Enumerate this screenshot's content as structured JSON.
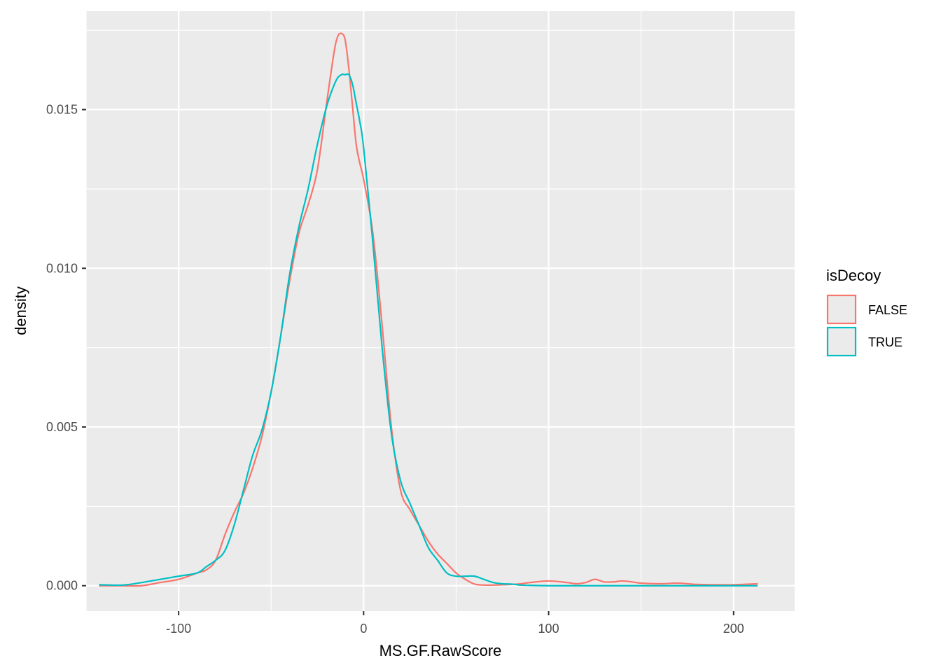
{
  "chart_data": {
    "type": "line",
    "subtype": "density",
    "title": "",
    "xlabel": "MS.GF.RawScore",
    "ylabel": "density",
    "xlim": [
      -150,
      233
    ],
    "ylim": [
      -0.0008,
      0.0181
    ],
    "x_ticks": [
      -100,
      0,
      100,
      200
    ],
    "x_tick_labels": [
      "-100",
      "0",
      "100",
      "200"
    ],
    "y_ticks": [
      0,
      0.005,
      0.01,
      0.015
    ],
    "y_tick_labels": [
      "0.000",
      "0.005",
      "0.010",
      "0.015"
    ],
    "grid": true,
    "background": "#ebebeb",
    "legend": {
      "title": "isDecoy",
      "position": "right"
    },
    "series": [
      {
        "name": "FALSE",
        "color": "#F8766D",
        "x": [
          -143,
          -130,
          -120,
          -110,
          -100,
          -90,
          -85,
          -80,
          -75,
          -70,
          -65,
          -60,
          -55,
          -50,
          -45,
          -40,
          -35,
          -30,
          -25,
          -20,
          -16,
          -14,
          -12,
          -10,
          -8,
          -6,
          -4,
          -2,
          0,
          5,
          10,
          15,
          20,
          25,
          30,
          35,
          40,
          45,
          50,
          55,
          60,
          65,
          70,
          75,
          80,
          85,
          90,
          100,
          110,
          115,
          120,
          125,
          130,
          135,
          140,
          145,
          150,
          160,
          170,
          180,
          190,
          200,
          213
        ],
        "y": [
          0,
          0,
          0,
          0.0001,
          0.0002,
          0.0004,
          0.0005,
          0.0008,
          0.0016,
          0.0023,
          0.0029,
          0.0037,
          0.0047,
          0.0061,
          0.0078,
          0.0096,
          0.0111,
          0.012,
          0.0131,
          0.0152,
          0.0168,
          0.0173,
          0.0174,
          0.0172,
          0.0163,
          0.0151,
          0.0139,
          0.0133,
          0.0128,
          0.0111,
          0.0082,
          0.005,
          0.003,
          0.0024,
          0.0019,
          0.0014,
          0.001,
          0.0007,
          0.0004,
          0.0002,
          5e-05,
          2e-05,
          2e-05,
          3e-05,
          4e-05,
          6e-05,
          0.0001,
          0.00015,
          0.0001,
          6e-05,
          0.0001,
          0.0002,
          0.00012,
          0.00012,
          0.00015,
          0.00012,
          8e-05,
          6e-05,
          8e-05,
          4e-05,
          3e-05,
          3e-05,
          6e-05
        ]
      },
      {
        "name": "TRUE",
        "color": "#00BFC4",
        "x": [
          -143,
          -130,
          -120,
          -110,
          -100,
          -90,
          -85,
          -80,
          -75,
          -70,
          -65,
          -60,
          -55,
          -50,
          -45,
          -40,
          -35,
          -30,
          -25,
          -20,
          -15,
          -12,
          -10,
          -8,
          -6,
          -4,
          -2,
          0,
          5,
          10,
          15,
          20,
          25,
          30,
          35,
          40,
          45,
          50,
          55,
          60,
          65,
          70,
          75,
          80,
          85,
          90,
          100,
          110,
          120,
          150,
          180,
          213
        ],
        "y": [
          3e-05,
          2e-05,
          0.0001,
          0.0002,
          0.0003,
          0.0004,
          0.0006,
          0.0008,
          0.0011,
          0.0019,
          0.003,
          0.0041,
          0.0049,
          0.0061,
          0.0078,
          0.0098,
          0.0113,
          0.0125,
          0.0139,
          0.0151,
          0.0159,
          0.0161,
          0.0161,
          0.0161,
          0.0158,
          0.0152,
          0.0146,
          0.0138,
          0.0108,
          0.0075,
          0.0048,
          0.0033,
          0.0026,
          0.0019,
          0.0012,
          0.0008,
          0.0004,
          0.0003,
          0.0003,
          0.0003,
          0.0002,
          0.0001,
          6e-05,
          5e-05,
          2e-05,
          1e-05,
          0,
          0,
          0,
          0,
          0,
          0
        ]
      }
    ]
  }
}
